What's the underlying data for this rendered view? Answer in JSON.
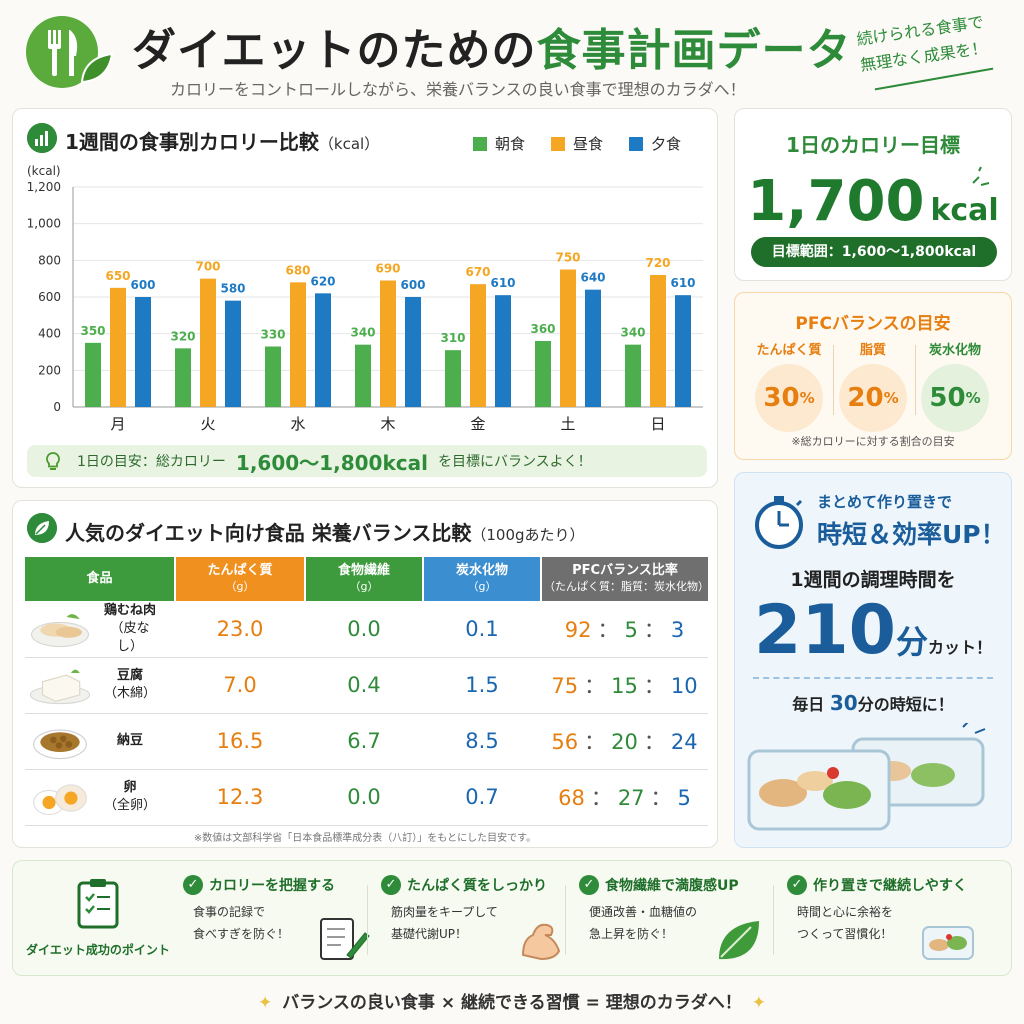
{
  "header": {
    "title_part1": "ダイエットのための",
    "title_part2": "食事計画データ",
    "subtitle": "カロリーをコントロールしながら、栄養バランスの良い食事で理想のカラダへ！",
    "slogan_line1": "続けられる食事で",
    "slogan_line2": "無理なく成果を！",
    "logo_icon": "fork-knife-leaf-icon"
  },
  "chart": {
    "title": "1週間の食事別カロリー比較",
    "title_unit": "（kcal）",
    "tip_prefix": "1日の目安：総カロリー",
    "tip_value": "1,600〜1,800kcal",
    "tip_suffix": "を目標にバランスよく！"
  },
  "chart_data": {
    "type": "bar",
    "title": "1週間の食事別カロリー比較（kcal）",
    "ylabel": "(kcal)",
    "ylim": [
      0,
      1200
    ],
    "yticks": [
      0,
      200,
      400,
      600,
      800,
      1000,
      1200
    ],
    "ytick_labels": [
      "0",
      "200",
      "400",
      "600",
      "800",
      "1,000",
      "1,200"
    ],
    "grid": true,
    "legend": "top-right",
    "categories": [
      "月",
      "火",
      "水",
      "木",
      "金",
      "土",
      "日"
    ],
    "series": [
      {
        "name": "朝食",
        "color": "#4cae4c",
        "values": [
          350,
          320,
          330,
          340,
          310,
          360,
          340
        ]
      },
      {
        "name": "昼食",
        "color": "#f5a623",
        "values": [
          650,
          700,
          680,
          690,
          670,
          750,
          720
        ]
      },
      {
        "name": "夕食",
        "color": "#1f7ac4",
        "values": [
          600,
          580,
          620,
          600,
          610,
          640,
          610
        ]
      }
    ]
  },
  "goal": {
    "label": "1日のカロリー目標",
    "value": "1,700",
    "unit": "kcal",
    "range": "目標範囲：1,600〜1,800kcal"
  },
  "pfc": {
    "title": "PFCバランスの目安",
    "items": [
      {
        "label": "たんぱく質",
        "value": "30",
        "pct": "%",
        "color": "#e67e10",
        "bg": "#fde9cf"
      },
      {
        "label": "脂質",
        "value": "20",
        "pct": "%",
        "color": "#e67e10",
        "bg": "#fde9cf"
      },
      {
        "label": "炭水化物",
        "value": "50",
        "pct": "%",
        "color": "#2e8b3a",
        "bg": "#e4f1dd"
      }
    ],
    "note": "※総カロリーに対する割合の目安"
  },
  "prep": {
    "line1": "まとめて作り置きで",
    "line2": "時短＆効率UP！",
    "line3": "1週間の調理時間を",
    "value": "210",
    "unit": "分",
    "cut": "カット！",
    "daily_prefix": "毎日",
    "daily_value": "30",
    "daily_suffix": "分の時短に！"
  },
  "table": {
    "title": "人気のダイエット向け食品 栄養バランス比較",
    "title_unit": "（100gあたり）",
    "headers": [
      {
        "label": "食品",
        "sub": "",
        "color": "#3d9b3d"
      },
      {
        "label": "たんぱく質",
        "sub": "（g）",
        "color": "#f0901e"
      },
      {
        "label": "食物繊維",
        "sub": "（g）",
        "color": "#3d9b3d"
      },
      {
        "label": "炭水化物",
        "sub": "（g）",
        "color": "#3b8fd0"
      },
      {
        "label": "PFCバランス比率",
        "sub": "（たんぱく質：脂質：炭水化物）",
        "color": "#6f6f6f"
      }
    ],
    "rows": [
      {
        "name": "鶏むね肉",
        "sub": "（皮なし）",
        "protein": "23.0",
        "fiber": "0.0",
        "carb": "0.1",
        "p": "92",
        "f": "5",
        "c": "3"
      },
      {
        "name": "豆腐",
        "sub": "（木綿）",
        "protein": "7.0",
        "fiber": "0.4",
        "carb": "1.5",
        "p": "75",
        "f": "15",
        "c": "10"
      },
      {
        "name": "納豆",
        "sub": "",
        "protein": "16.5",
        "fiber": "6.7",
        "carb": "8.5",
        "p": "56",
        "f": "20",
        "c": "24"
      },
      {
        "name": "卵",
        "sub": "（全卵）",
        "protein": "12.3",
        "fiber": "0.0",
        "carb": "0.7",
        "p": "68",
        "f": "27",
        "c": "5"
      }
    ],
    "note": "※数値は文部科学省「日本食品標準成分表（八訂）」をもとにした目安です。"
  },
  "points": {
    "label": "ダイエット成功のポイント",
    "items": [
      {
        "title": "カロリーを把握する",
        "line1": "食事の記録で",
        "line2": "食べすぎを防ぐ！",
        "icon": "notebook-pen-icon"
      },
      {
        "title": "たんぱく質をしっかり",
        "line1": "筋肉量をキープして",
        "line2": "基礎代謝UP！",
        "icon": "flexing-arm-icon"
      },
      {
        "title": "食物繊維で満腹感UP",
        "line1": "便通改善・血糖値の",
        "line2": "急上昇を防ぐ！",
        "icon": "leaf-icon"
      },
      {
        "title": "作り置きで継続しやすく",
        "line1": "時間と心に余裕を",
        "line2": "つくって習慣化！",
        "icon": "meal-container-icon"
      }
    ]
  },
  "footer": {
    "text": "バランスの良い食事 × 継続できる習慣 = 理想のカラダへ！"
  }
}
